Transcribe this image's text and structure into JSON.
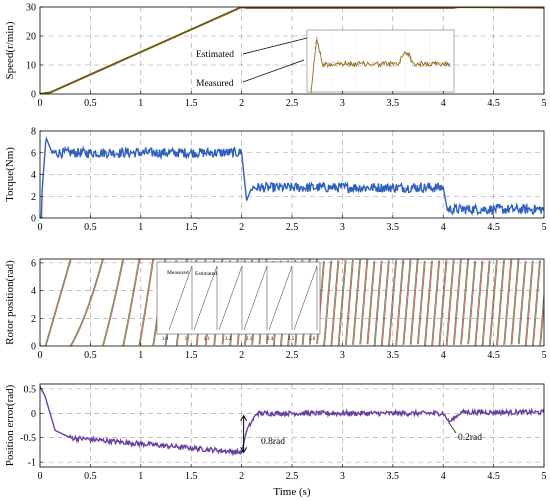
{
  "chart_data": [
    {
      "type": "line",
      "ylabel": "Speed(r/min)",
      "xlim": [
        0,
        5
      ],
      "ylim": [
        0,
        30
      ],
      "xticks": [
        "0",
        "0.5",
        "1",
        "1.5",
        "2",
        "2.5",
        "3",
        "3.5",
        "4",
        "4.5",
        "5"
      ],
      "yticks": [
        "0",
        "10",
        "20",
        "30"
      ],
      "grid": true,
      "series": [
        {
          "name": "Estimated",
          "color": "#b23a2a",
          "x": [
            0,
            0.1,
            2.0,
            2.05,
            4.1,
            4.15,
            5
          ],
          "y": [
            0,
            0.5,
            29.8,
            29.6,
            29.6,
            29.9,
            29.7
          ]
        },
        {
          "name": "Measured",
          "color": "#556b00",
          "x": [
            0,
            0.1,
            2.0,
            2.05,
            4.1,
            4.15,
            5
          ],
          "y": [
            0,
            0.5,
            30.0,
            29.7,
            29.7,
            30.0,
            29.8
          ]
        }
      ],
      "annotations": [
        {
          "text": "Estimated",
          "x": 2.6,
          "y": 24
        },
        {
          "text": "Measured",
          "x": 2.6,
          "y": 15
        }
      ],
      "inset": {
        "note": "zoomed view of speed ripple",
        "color": "#7a6f00"
      }
    },
    {
      "type": "line",
      "ylabel": "Torque(Nm)",
      "xlim": [
        0,
        5
      ],
      "ylim": [
        0,
        8
      ],
      "xticks": [
        "0",
        "0.5",
        "1",
        "1.5",
        "2",
        "2.5",
        "3",
        "3.5",
        "4",
        "4.5",
        "5"
      ],
      "yticks": [
        "0",
        "2",
        "4",
        "6",
        "8"
      ],
      "grid": true,
      "series": [
        {
          "name": "",
          "color": "#2f5fbf",
          "segments": [
            {
              "x0": 0,
              "x1": 0.02,
              "level": 0
            },
            {
              "x0": 0.05,
              "x1": 0.1,
              "level": 7.4
            },
            {
              "x0": 0.15,
              "x1": 2.0,
              "level": 6.0
            },
            {
              "x0": 2.05,
              "x1": 4.0,
              "level": 2.8
            },
            {
              "x0": 4.05,
              "x1": 5.0,
              "level": 0.8
            }
          ]
        }
      ]
    },
    {
      "type": "line",
      "ylabel": "Rotor position(rad)",
      "xlim": [
        0,
        5
      ],
      "ylim": [
        0,
        6.28
      ],
      "xticks": [
        "0",
        "0.5",
        "1",
        "1.5",
        "2",
        "2.5",
        "3",
        "3.5",
        "4",
        "4.5",
        "5"
      ],
      "yticks": [
        "0",
        "2",
        "4",
        "6"
      ],
      "grid": true,
      "series": [
        {
          "name": "Estimated",
          "color": "#c0392b"
        },
        {
          "name": "Measured",
          "color": "#2e7d32"
        }
      ],
      "inset": {
        "xticks": [
          "1.9",
          "2",
          "2.1",
          "2.2",
          "2.3",
          "2.4",
          "2.5",
          "2.6"
        ],
        "labels": [
          "Measured",
          "Estimated"
        ]
      }
    },
    {
      "type": "line",
      "ylabel": "Position error(rad)",
      "xlabel": "Time (s)",
      "xlim": [
        0,
        5
      ],
      "ylim": [
        -1.1,
        0.6
      ],
      "xticks": [
        "0",
        "0.5",
        "1",
        "1.5",
        "2",
        "2.5",
        "3",
        "3.5",
        "4",
        "4.5",
        "5"
      ],
      "yticks": [
        "-1",
        "-0.5",
        "0",
        "0.5"
      ],
      "grid": true,
      "series": [
        {
          "name": "",
          "color": "#6a3fa0",
          "x": [
            0,
            0.05,
            0.15,
            0.3,
            1.0,
            1.5,
            2.0,
            2.05,
            2.1,
            2.3,
            3.0,
            4.0,
            4.05,
            4.1,
            4.2,
            5.0
          ],
          "y": [
            0.55,
            0.4,
            -0.35,
            -0.5,
            -0.6,
            -0.7,
            -0.8,
            -0.35,
            -0.05,
            0.0,
            0.0,
            0.0,
            -0.15,
            -0.1,
            0.05,
            0.0
          ]
        }
      ],
      "annotations": [
        {
          "text": "0.8rad",
          "x": 2.1,
          "y": -0.75
        },
        {
          "text": "0.2rad",
          "x": 4.25,
          "y": -0.45
        }
      ]
    }
  ]
}
